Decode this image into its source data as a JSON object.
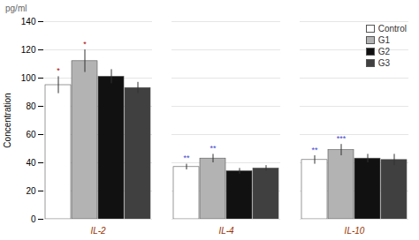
{
  "chart_data": {
    "type": "bar",
    "categories": [
      "IL-2",
      "IL-4",
      "IL-10"
    ],
    "series": [
      {
        "name": "Control",
        "color": "#ffffff",
        "values": [
          95,
          37,
          42
        ],
        "errors": [
          6,
          2,
          3
        ]
      },
      {
        "name": "G1",
        "color": "#b3b3b3",
        "values": [
          112,
          43,
          49
        ],
        "errors": [
          8,
          3,
          4
        ]
      },
      {
        "name": "G2",
        "color": "#111111",
        "values": [
          101,
          34,
          43
        ],
        "errors": [
          5,
          2,
          3
        ]
      },
      {
        "name": "G3",
        "color": "#404040",
        "values": [
          93,
          36,
          42
        ],
        "errors": [
          4,
          2,
          4
        ]
      }
    ],
    "ylabel": "Concentration",
    "ylim": [
      0,
      140
    ],
    "yticks": [
      0,
      20,
      40,
      60,
      80,
      100,
      120,
      140
    ],
    "grid": true,
    "legend": "upper right",
    "annotations": [
      {
        "text": "*",
        "category": "IL-2",
        "series": "Control",
        "color": "#aa0000"
      },
      {
        "text": "*",
        "category": "IL-2",
        "series": "G1",
        "color": "#aa0000"
      },
      {
        "text": "**",
        "category": "IL-4",
        "series": "Control",
        "color": "#4444cc"
      },
      {
        "text": "**",
        "category": "IL-4",
        "series": "G1",
        "color": "#4444cc"
      },
      {
        "text": "**",
        "category": "IL-10",
        "series": "Control",
        "color": "#4444cc"
      },
      {
        "text": "***",
        "category": "IL-10",
        "series": "G1",
        "color": "#4444cc"
      },
      {
        "text": "pg/ml"
      }
    ]
  }
}
